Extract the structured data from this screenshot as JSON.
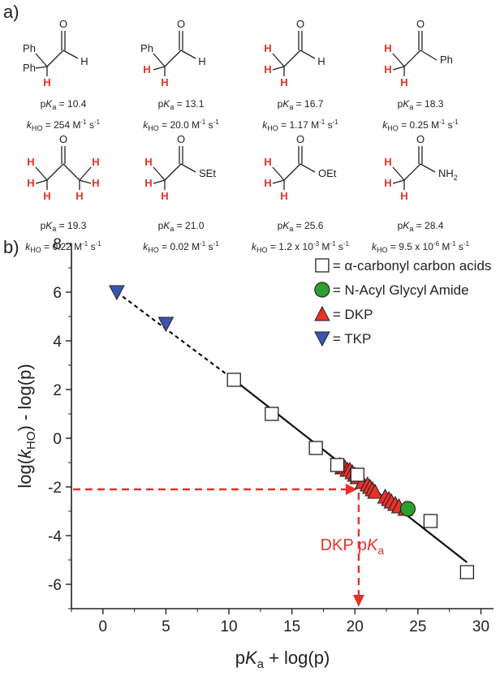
{
  "panel_a": {
    "label": "a)",
    "compounds": [
      {
        "pka": "10.4",
        "k_value": "254",
        "k_unit": "M",
        "k_exp1": "-1",
        "k_exp2": "-1",
        "atoms": {
          "ph1": "Ph",
          "ph2": "Ph",
          "h_ald": "H",
          "o": "O"
        }
      },
      {
        "pka": "13.1",
        "k_value": "20.0",
        "k_unit": "M",
        "k_exp1": "-1",
        "k_exp2": "-1",
        "atoms": {
          "ph1": "Ph",
          "h_ald": "H",
          "o": "O"
        }
      },
      {
        "pka": "16.7",
        "k_value": "1.17",
        "k_unit": "M",
        "k_exp1": "-1",
        "k_exp2": "-1",
        "atoms": {
          "h_ald": "H",
          "o": "O"
        }
      },
      {
        "pka": "18.3",
        "k_value": "0.25",
        "k_unit": "M",
        "k_exp1": "-1",
        "k_exp2": "-1",
        "atoms": {
          "ph1": "Ph",
          "o": "O"
        }
      },
      {
        "pka": "19.3",
        "k_value": "0.22",
        "k_unit": "M",
        "k_exp1": "-1",
        "k_exp2": "-1",
        "atoms": {
          "o": "O"
        }
      },
      {
        "pka": "21.0",
        "k_value": "0.02",
        "k_unit": "M",
        "k_exp1": "-1",
        "k_exp2": "-1",
        "atoms": {
          "sub": "SEt",
          "o": "O"
        }
      },
      {
        "pka": "25.6",
        "k_value": "1.2 x 10",
        "k_exp0": "-3",
        "k_unit": "M",
        "k_exp1": "-1",
        "k_exp2": "-1",
        "atoms": {
          "sub": "OEt",
          "o": "O"
        }
      },
      {
        "pka": "28.4",
        "k_value": "9.5 x 10",
        "k_exp0": "-6",
        "k_unit": "M",
        "k_exp1": "-1",
        "k_exp2": "-1",
        "atoms": {
          "sub": "NH",
          "sub2": "2",
          "o": "O"
        }
      }
    ],
    "pka_prefix": "p",
    "pka_var": "K",
    "pka_sub": "a",
    "k_var": "k",
    "k_sub": "HO",
    "acidic_h": "H",
    "acidic_color": "#e8312a"
  },
  "panel_b": {
    "label": "b)"
  },
  "colors": {
    "open_square": "#ffffff",
    "green": "#2ca02c",
    "red": "#e8312a",
    "blue": "#3a55b4",
    "arrow": "#e8312a"
  },
  "chart_data": {
    "type": "scatter",
    "xlabel_main": "p",
    "xlabel_var": "K",
    "xlabel_sub": "a",
    "xlabel_tail": " + log(p)",
    "ylabel_head": "log(",
    "ylabel_var": "k",
    "ylabel_sub": "HO",
    "ylabel_tail": ") - log(p)",
    "xlim": [
      -2.5,
      31
    ],
    "ylim": [
      -7,
      8
    ],
    "xticks": [
      0,
      5,
      10,
      15,
      20,
      25,
      30
    ],
    "yticks": [
      -6,
      -4,
      -2,
      0,
      2,
      4,
      6,
      8
    ],
    "legend_position": "top-right",
    "series": [
      {
        "name": "= α-carbonyl carbon acids",
        "marker": "square",
        "points": [
          [
            10.4,
            2.4
          ],
          [
            13.4,
            1.0
          ],
          [
            16.9,
            -0.4
          ],
          [
            18.6,
            -1.1
          ],
          [
            20.2,
            -1.5
          ],
          [
            26.0,
            -3.4
          ],
          [
            28.9,
            -5.5
          ]
        ]
      },
      {
        "name": "= N-Acyl Glycyl Amide",
        "marker": "circle",
        "points": [
          [
            24.2,
            -2.9
          ]
        ]
      },
      {
        "name": "= DKP",
        "marker": "triangle-up",
        "points": [
          [
            18.8,
            -1.1
          ],
          [
            19.0,
            -1.2
          ],
          [
            19.2,
            -1.2
          ],
          [
            19.4,
            -1.3
          ],
          [
            19.6,
            -1.3
          ],
          [
            19.8,
            -1.4
          ],
          [
            20.0,
            -1.5
          ],
          [
            20.2,
            -1.6
          ],
          [
            20.6,
            -1.8
          ],
          [
            21.0,
            -1.9
          ],
          [
            21.2,
            -2.0
          ],
          [
            21.4,
            -2.1
          ],
          [
            21.6,
            -2.2
          ],
          [
            22.4,
            -2.4
          ],
          [
            22.7,
            -2.5
          ],
          [
            22.9,
            -2.6
          ],
          [
            23.2,
            -2.7
          ],
          [
            23.5,
            -2.8
          ],
          [
            24.0,
            -2.9
          ]
        ]
      },
      {
        "name": "= TKP",
        "marker": "triangle-down",
        "points": [
          [
            1.1,
            6.0
          ],
          [
            5.0,
            4.7
          ]
        ]
      }
    ],
    "fit_lines": [
      {
        "style": "dashed",
        "from": [
          1.1,
          6.0
        ],
        "to": [
          10.4,
          2.4
        ]
      },
      {
        "style": "solid",
        "from": [
          10.4,
          2.4
        ],
        "to": [
          28.9,
          -5.1
        ]
      }
    ],
    "annotation": {
      "text_head": "DKP p",
      "text_var": "K",
      "text_sub": "a",
      "y_level": -2.1,
      "x_level": 20.3
    }
  }
}
